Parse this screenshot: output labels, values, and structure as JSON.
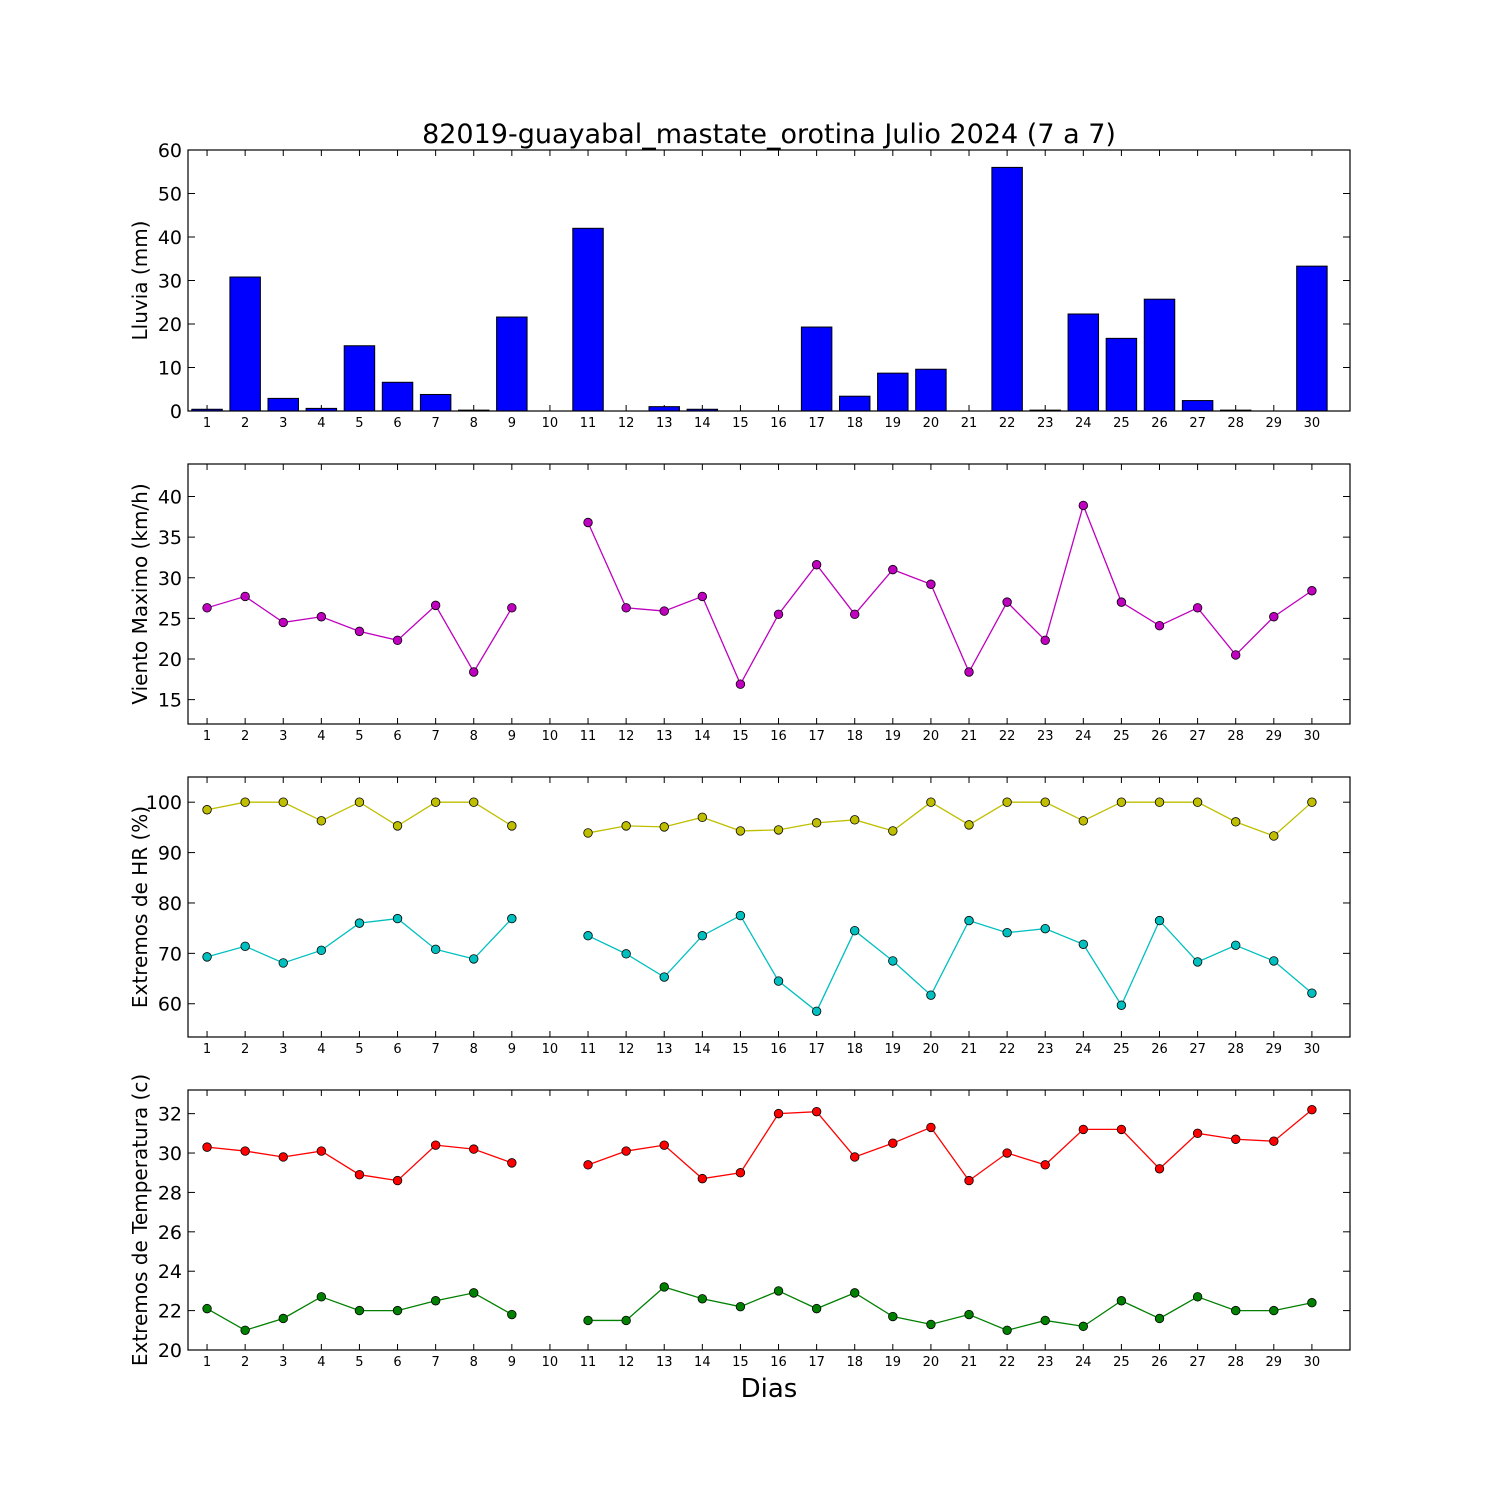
{
  "figure": {
    "title": "82019-guayabal_mastate_orotina Julio 2024  (7 a 7)",
    "xlabel": "Dias"
  },
  "chart_data": [
    {
      "type": "bar",
      "ylabel": "Lluvia (mm)",
      "ylim": [
        0,
        60
      ],
      "yticks": [
        0,
        10,
        20,
        30,
        40,
        50,
        60
      ],
      "categories": [
        1,
        2,
        3,
        4,
        5,
        6,
        7,
        8,
        9,
        10,
        11,
        12,
        13,
        14,
        15,
        16,
        17,
        18,
        19,
        20,
        21,
        22,
        23,
        24,
        25,
        26,
        27,
        28,
        29,
        30
      ],
      "series": [
        {
          "color": "#0000ff",
          "values": [
            0.4,
            30.8,
            2.9,
            0.6,
            15.0,
            6.6,
            3.8,
            0.2,
            21.6,
            0,
            42.0,
            0,
            1.0,
            0.4,
            0,
            0,
            19.3,
            3.4,
            8.7,
            9.6,
            0,
            56.0,
            0.2,
            22.3,
            16.7,
            25.7,
            2.4,
            0.2,
            0,
            33.3
          ]
        }
      ],
      "grid": false
    },
    {
      "type": "line",
      "ylabel": "Viento Maximo (km/h)",
      "ylim": [
        12,
        44
      ],
      "yticks": [
        15,
        20,
        25,
        30,
        35,
        40
      ],
      "categories": [
        1,
        2,
        3,
        4,
        5,
        6,
        7,
        8,
        9,
        10,
        11,
        12,
        13,
        14,
        15,
        16,
        17,
        18,
        19,
        20,
        21,
        22,
        23,
        24,
        25,
        26,
        27,
        28,
        29,
        30
      ],
      "series": [
        {
          "color": "#bf00bf",
          "values": [
            26.3,
            27.7,
            24.5,
            25.2,
            23.4,
            22.3,
            26.6,
            18.4,
            26.3,
            null,
            36.8,
            26.3,
            25.9,
            27.7,
            16.9,
            25.5,
            31.6,
            25.5,
            31.0,
            29.2,
            18.4,
            27.0,
            22.3,
            38.9,
            27.0,
            24.1,
            26.3,
            20.5,
            25.2,
            28.4
          ]
        }
      ],
      "grid": false
    },
    {
      "type": "line",
      "ylabel": "Extremos de HR (%)",
      "ylim": [
        53.4,
        105
      ],
      "yticks": [
        60,
        70,
        80,
        90,
        100
      ],
      "categories": [
        1,
        2,
        3,
        4,
        5,
        6,
        7,
        8,
        9,
        10,
        11,
        12,
        13,
        14,
        15,
        16,
        17,
        18,
        19,
        20,
        21,
        22,
        23,
        24,
        25,
        26,
        27,
        28,
        29,
        30
      ],
      "series": [
        {
          "color": "#bfbf00",
          "values": [
            98.5,
            100,
            100,
            96.3,
            100,
            95.3,
            100,
            100,
            95.3,
            null,
            93.9,
            95.3,
            95.1,
            97.0,
            94.3,
            94.5,
            95.9,
            96.5,
            94.3,
            100,
            95.5,
            100,
            100,
            96.3,
            100,
            100,
            100,
            96.1,
            93.3,
            100
          ]
        },
        {
          "color": "#00bfbf",
          "values": [
            69.3,
            71.4,
            68.1,
            70.6,
            76.0,
            76.9,
            70.8,
            68.9,
            76.9,
            null,
            73.5,
            69.9,
            65.3,
            73.5,
            77.5,
            64.5,
            58.5,
            74.5,
            68.5,
            61.7,
            76.5,
            74.1,
            74.9,
            71.8,
            59.7,
            76.5,
            68.3,
            71.6,
            68.5,
            62.1
          ]
        }
      ],
      "grid": false
    },
    {
      "type": "line",
      "ylabel": "Extremos de Temperatura (c)",
      "ylim": [
        20,
        33.2
      ],
      "yticks": [
        20,
        22,
        24,
        26,
        28,
        30,
        32
      ],
      "categories": [
        1,
        2,
        3,
        4,
        5,
        6,
        7,
        8,
        9,
        10,
        11,
        12,
        13,
        14,
        15,
        16,
        17,
        18,
        19,
        20,
        21,
        22,
        23,
        24,
        25,
        26,
        27,
        28,
        29,
        30
      ],
      "series": [
        {
          "color": "#ff0000",
          "values": [
            30.3,
            30.1,
            29.8,
            30.1,
            28.9,
            28.6,
            30.4,
            30.2,
            29.5,
            null,
            29.4,
            30.1,
            30.4,
            28.7,
            29.0,
            32.0,
            32.1,
            29.8,
            30.5,
            31.3,
            28.6,
            30.0,
            29.4,
            31.2,
            31.2,
            29.2,
            31.0,
            30.7,
            30.6,
            32.2
          ]
        },
        {
          "color": "#008000",
          "values": [
            22.1,
            21.0,
            21.6,
            22.7,
            22.0,
            22.0,
            22.5,
            22.9,
            21.8,
            null,
            21.5,
            21.5,
            23.2,
            22.6,
            22.2,
            23.0,
            22.1,
            22.9,
            21.7,
            21.3,
            21.8,
            21.0,
            21.5,
            21.2,
            22.5,
            21.6,
            22.7,
            22.0,
            22.0,
            22.4
          ]
        }
      ],
      "grid": false
    }
  ]
}
